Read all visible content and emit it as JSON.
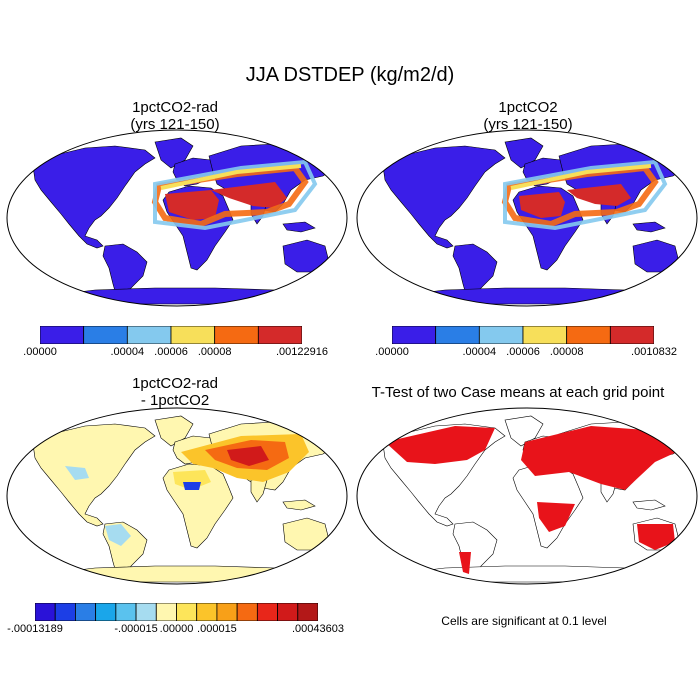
{
  "main_title": "JJA DSTDEP (kg/m2/d)",
  "panels": [
    {
      "title_line1": "1pctCO2-rad",
      "title_line2": "(yrs 121-150)"
    },
    {
      "title_line1": "1pctCO2",
      "title_line2": "(yrs 121-150)"
    },
    {
      "title_line1": "1pctCO2-rad",
      "title_line2": "- 1pctCO2"
    },
    {
      "title_line1": "T-Test of two Case means at each grid point",
      "title_line2": ""
    }
  ],
  "colorbars": {
    "cb1": {
      "colors": [
        "#3a1ee8",
        "#2a7ee6",
        "#84c9ee",
        "#f7df5a",
        "#f56a12",
        "#d42a2a"
      ],
      "labels": [
        ".00000",
        ".00004",
        ".00006",
        ".00008",
        ".00122916"
      ],
      "label_slots": [
        0,
        2,
        3,
        4,
        6
      ]
    },
    "cb2": {
      "colors": [
        "#3a1ee8",
        "#2a7ee6",
        "#84c9ee",
        "#f7df5a",
        "#f56a12",
        "#d42a2a"
      ],
      "labels": [
        ".00000",
        ".00004",
        ".00006",
        ".00008",
        ".0010832"
      ],
      "label_slots": [
        0,
        2,
        3,
        4,
        6
      ]
    },
    "cb3": {
      "colors": [
        "#2a12d8",
        "#1c3ee6",
        "#2a7ee6",
        "#1aa6ea",
        "#5ac2ee",
        "#a6dcf0",
        "#fff7b0",
        "#fde55a",
        "#fbc42a",
        "#f8a018",
        "#f56a12",
        "#e8261a",
        "#d11a1a",
        "#b31818"
      ],
      "labels": [
        "-.00013189",
        "-.000015",
        ".00000",
        ".000015",
        ".00043603"
      ],
      "label_slots": [
        0,
        5,
        7,
        9,
        14
      ]
    }
  },
  "significance_note": "Cells are significant at 0.1 level"
}
